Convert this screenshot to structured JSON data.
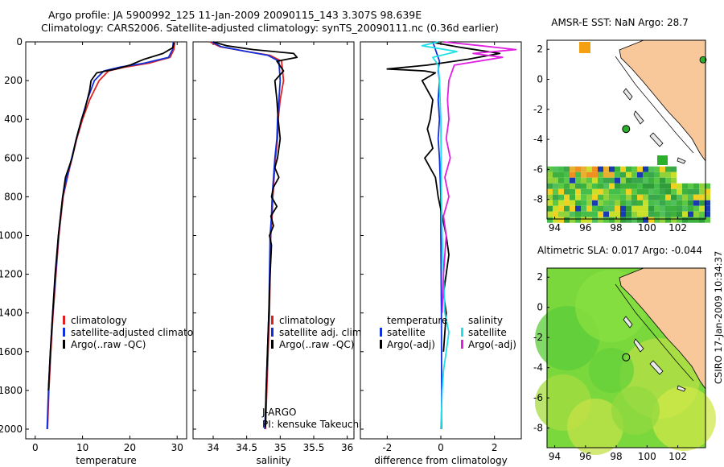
{
  "header": {
    "line1": "Argo profile: JA 5900992_125 11-Jan-2009 20090115_143 3.307S 98.639E",
    "line2": "Climatology: CARS2006. Satellite-adjusted climatology: synTS_20090111.nc (0.36d earlier)"
  },
  "credit": "CSIRO 17-Jan-2009 10:34:37",
  "colors": {
    "climatology": "#e02020",
    "satellite": "#1030e0",
    "argo": "#000000",
    "sal_satellite": "#20e0e8",
    "sal_argo": "#e020e0",
    "land": "#f8c89a"
  },
  "chart_data": [
    {
      "type": "line",
      "xlabel": "temperature",
      "ylabel": "",
      "xlim": [
        -2,
        32
      ],
      "ylim": [
        2050,
        0
      ],
      "xticks": [
        "0",
        "10",
        "20",
        "30"
      ],
      "yticks": [
        "0",
        "200",
        "400",
        "600",
        "800",
        "1000",
        "1200",
        "1400",
        "1600",
        "1800",
        "2000"
      ],
      "legend": [
        "climatology",
        "satellite-adjusted climatology",
        "Argo(..raw -QC)"
      ],
      "series": [
        {
          "name": "climatology",
          "x": [
            29.5,
            29.3,
            28.5,
            24,
            19,
            15.5,
            13.5,
            11.5,
            10,
            8.8,
            7.8,
            6.8,
            5.9,
            5.0,
            4.4,
            3.8,
            3.3,
            2.9,
            2.6
          ],
          "y": [
            0,
            40,
            80,
            110,
            130,
            150,
            200,
            300,
            400,
            500,
            600,
            700,
            800,
            1000,
            1200,
            1400,
            1600,
            1800,
            2000
          ]
        },
        {
          "name": "satellite-adjusted climatology",
          "x": [
            29.2,
            29.0,
            28.2,
            23,
            18,
            14.5,
            12.5,
            11,
            9.8,
            8.7,
            7.7,
            6.7,
            5.8,
            4.9,
            4.3,
            3.7,
            3.2,
            2.8,
            2.5
          ],
          "y": [
            0,
            40,
            80,
            110,
            130,
            150,
            200,
            300,
            400,
            500,
            600,
            700,
            800,
            1000,
            1200,
            1400,
            1600,
            1800,
            2000
          ]
        },
        {
          "name": "Argo(..raw -QC)",
          "x": [
            29.3,
            29.1,
            27,
            23,
            20,
            17,
            15,
            13,
            11.8,
            11.5,
            10.5,
            9.8,
            8.7,
            7.8,
            6.4,
            5.8,
            4.9,
            4.2,
            3.7,
            3.2,
            2.8
          ],
          "y": [
            5,
            30,
            60,
            90,
            120,
            140,
            150,
            160,
            200,
            250,
            350,
            400,
            500,
            600,
            700,
            800,
            1000,
            1200,
            1400,
            1600,
            1800
          ]
        }
      ]
    },
    {
      "type": "line",
      "xlabel": "salinity",
      "xlim": [
        33.7,
        36.1
      ],
      "ylim": [
        2050,
        0
      ],
      "xticks": [
        "34",
        "34.5",
        "35",
        "35.5",
        "36"
      ],
      "legend": [
        "climatology",
        "satellite adj. clim.",
        "Argo(..raw -QC)"
      ],
      "annotations": [
        "J-ARGO",
        "PI: kensuke Takeuchi"
      ],
      "series": [
        {
          "name": "climatology",
          "x": [
            33.95,
            34.1,
            34.5,
            34.85,
            35.02,
            35.05,
            35.0,
            34.97,
            34.96,
            34.93,
            34.91,
            34.89,
            34.88,
            34.86,
            34.85,
            34.84,
            34.82,
            34.8,
            34.78
          ],
          "y": [
            0,
            25,
            50,
            70,
            100,
            200,
            300,
            400,
            500,
            600,
            700,
            800,
            900,
            1000,
            1200,
            1400,
            1600,
            1800,
            2000
          ]
        },
        {
          "name": "satellite adj. clim.",
          "x": [
            33.98,
            34.12,
            34.5,
            34.82,
            34.98,
            35.0,
            34.98,
            34.96,
            34.95,
            34.92,
            34.9,
            34.88,
            34.87,
            34.85,
            34.84,
            34.83,
            34.81,
            34.79,
            34.77
          ],
          "y": [
            0,
            25,
            50,
            70,
            100,
            200,
            300,
            400,
            500,
            600,
            700,
            800,
            900,
            1000,
            1200,
            1400,
            1600,
            1800,
            2000
          ]
        },
        {
          "name": "Argo(..raw -QC)",
          "x": [
            34.0,
            34.2,
            34.6,
            35.2,
            35.25,
            34.95,
            35.05,
            34.92,
            34.95,
            34.97,
            35.0,
            34.96,
            34.92,
            34.98,
            34.9,
            34.87,
            34.95,
            34.86,
            34.9,
            34.84,
            34.87,
            34.85,
            34.83,
            34.81,
            34.79,
            34.78
          ],
          "y": [
            0,
            20,
            40,
            60,
            80,
            100,
            150,
            200,
            300,
            400,
            500,
            600,
            650,
            700,
            750,
            800,
            850,
            900,
            950,
            1000,
            1050,
            1200,
            1400,
            1600,
            1800,
            1990
          ]
        }
      ]
    },
    {
      "type": "line",
      "xlabel": "difference from climatology",
      "xlim": [
        -3,
        3
      ],
      "ylim": [
        2050,
        0
      ],
      "xticks": [
        "-2",
        "0",
        "2"
      ],
      "legend": [
        "temperature",
        "satellite",
        "Argo(-adj)",
        "salinity",
        "satellite",
        "Argo(-adj)"
      ],
      "series": [
        {
          "name": "temperature satellite",
          "x": [
            -0.3,
            -0.15,
            -0.05,
            -0.1,
            -0.05,
            -0.1,
            -0.05,
            -0.1,
            -0.05,
            0,
            0,
            0.02,
            0.03,
            0.02
          ],
          "y": [
            0,
            60,
            100,
            150,
            200,
            300,
            400,
            500,
            600,
            800,
            1000,
            1400,
            1800,
            2000
          ]
        },
        {
          "name": "temperature Argo(-adj)",
          "x": [
            -0.2,
            0.8,
            2.2,
            1.0,
            -0.5,
            -2.0,
            -0.6,
            -0.2,
            -0.7,
            -0.3,
            -0.4,
            -0.5,
            -0.3,
            -0.6,
            -0.2,
            -0.1,
            0.2,
            0.3,
            0.1,
            0.2,
            0.1
          ],
          "y": [
            5,
            30,
            60,
            90,
            120,
            140,
            150,
            160,
            200,
            300,
            400,
            450,
            550,
            600,
            700,
            800,
            1000,
            1100,
            1300,
            1400,
            1600
          ]
        },
        {
          "name": "salinity satellite",
          "x": [
            -0.1,
            -0.7,
            0.6,
            -0.3,
            -0.1,
            -0.05,
            0,
            0.02,
            0.05,
            0.1,
            0.15,
            0.3,
            0.2,
            0.1,
            0.05,
            0
          ],
          "y": [
            0,
            20,
            50,
            80,
            120,
            200,
            400,
            800,
            1000,
            1200,
            1400,
            1500,
            1600,
            1700,
            1800,
            2000
          ]
        },
        {
          "name": "salinity Argo(-adj)",
          "x": [
            0.1,
            1.5,
            2.8,
            1.2,
            2.3,
            0.5,
            0.3,
            0.25,
            0.3,
            0.2,
            0.35,
            0.15,
            0.3,
            0.1,
            0.2,
            0.1,
            0.05
          ],
          "y": [
            0,
            20,
            40,
            60,
            80,
            120,
            200,
            300,
            400,
            500,
            600,
            700,
            800,
            900,
            1000,
            1200,
            1400
          ]
        }
      ]
    },
    {
      "type": "heatmap",
      "title": "AMSR-E SST: NaN Argo: 28.7",
      "xlim": [
        93.5,
        103.8
      ],
      "ylim": [
        -9.3,
        2.6
      ],
      "xticks": [
        "94",
        "96",
        "98",
        "100",
        "102"
      ],
      "yticks": [
        "2",
        "0",
        "-2",
        "-4",
        "-6",
        "-8"
      ]
    },
    {
      "type": "heatmap",
      "title": "Altimetric SLA: 0.017 Argo: -0.044",
      "xlim": [
        93.5,
        103.8
      ],
      "ylim": [
        -9.3,
        2.6
      ],
      "xticks": [
        "94",
        "96",
        "98",
        "100",
        "102"
      ],
      "yticks": [
        "2",
        "0",
        "-2",
        "-4",
        "-6",
        "-8"
      ]
    }
  ]
}
